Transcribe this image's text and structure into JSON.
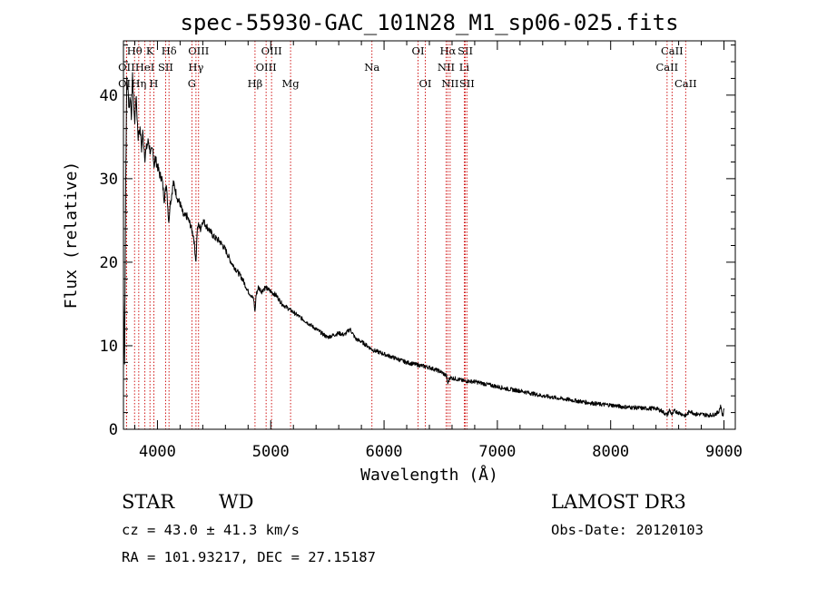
{
  "chart_data": {
    "type": "line",
    "title": "spec-55930-GAC_101N28_M1_sp06-025.fits",
    "xlabel": "Wavelength (Å)",
    "ylabel": "Flux (relative)",
    "xlim": [
      3700,
      9100
    ],
    "ylim": [
      0,
      46.5
    ],
    "xticks": [
      4000,
      5000,
      6000,
      7000,
      8000,
      9000
    ],
    "yticks": [
      0,
      10,
      20,
      30,
      40
    ],
    "grid": false,
    "series": [
      {
        "name": "spectrum",
        "x": [
          3700,
          3710,
          3720,
          3730,
          3740,
          3750,
          3760,
          3770,
          3780,
          3790,
          3800,
          3810,
          3820,
          3830,
          3840,
          3850,
          3860,
          3870,
          3880,
          3890,
          3900,
          3920,
          3940,
          3960,
          3970,
          3980,
          4000,
          4020,
          4040,
          4060,
          4080,
          4100,
          4110,
          4120,
          4140,
          4160,
          4180,
          4200,
          4230,
          4260,
          4290,
          4320,
          4340,
          4350,
          4360,
          4380,
          4400,
          4450,
          4500,
          4550,
          4600,
          4650,
          4700,
          4750,
          4800,
          4830,
          4850,
          4861,
          4870,
          4890,
          4920,
          4950,
          5000,
          5050,
          5100,
          5150,
          5200,
          5300,
          5400,
          5500,
          5600,
          5650,
          5700,
          5750,
          5800,
          5850,
          5900,
          6000,
          6100,
          6200,
          6300,
          6400,
          6500,
          6550,
          6563,
          6580,
          6650,
          6700,
          6800,
          6900,
          7000,
          7100,
          7200,
          7300,
          7400,
          7500,
          7600,
          7700,
          7800,
          7900,
          8000,
          8100,
          8200,
          8300,
          8400,
          8450,
          8498,
          8520,
          8542,
          8560,
          8600,
          8662,
          8700,
          8750,
          8800,
          8850,
          8900,
          8950,
          8970,
          8990,
          9000
        ],
        "y": [
          16,
          8,
          30,
          42,
          40.5,
          38.5,
          40,
          37.5,
          42,
          39.5,
          36.5,
          40,
          37.5,
          35,
          36,
          35.5,
          33.5,
          35.5,
          34,
          32.5,
          33.5,
          34.5,
          33,
          33.5,
          31.5,
          32.5,
          31.5,
          30.5,
          30,
          27.5,
          29.5,
          24.5,
          27,
          27.5,
          29.5,
          28.5,
          27.5,
          27,
          25.5,
          25.5,
          24.5,
          23,
          20,
          23.5,
          24.5,
          24,
          25,
          24,
          23,
          22.5,
          21.5,
          20,
          19,
          18,
          16.5,
          16,
          15.5,
          14,
          16,
          17,
          16.5,
          17,
          16.5,
          16,
          15,
          14.5,
          14,
          13,
          12,
          11,
          11.5,
          11.3,
          12,
          10.8,
          10.5,
          10,
          9.5,
          9,
          8.5,
          8,
          7.7,
          7.4,
          6.9,
          6.4,
          5.5,
          6.2,
          6,
          5.8,
          5.7,
          5.4,
          5.1,
          4.8,
          4.6,
          4.3,
          4,
          3.8,
          3.6,
          3.4,
          3.2,
          3,
          2.9,
          2.7,
          2.6,
          2.5,
          2.5,
          2.2,
          1.7,
          2.3,
          1.7,
          2.2,
          2,
          1.6,
          2.2,
          1.8,
          1.8,
          1.7,
          1.7,
          2,
          2.8,
          1.5,
          2.5
        ]
      }
    ],
    "lines": [
      {
        "label": "Hθ",
        "wl": 3798,
        "row": 0
      },
      {
        "label": "K",
        "wl": 3934,
        "row": 0
      },
      {
        "label": "Hδ",
        "wl": 4102,
        "row": 0
      },
      {
        "label": "OIII",
        "wl": 4363,
        "row": 0
      },
      {
        "label": "OIII",
        "wl": 5007,
        "row": 0
      },
      {
        "label": "OI",
        "wl": 6300,
        "row": 0
      },
      {
        "label": "Hα",
        "wl": 6563,
        "row": 0
      },
      {
        "label": "SII",
        "wl": 6717,
        "row": 0
      },
      {
        "label": "CaII",
        "wl": 8542,
        "row": 0
      },
      {
        "label": "OII",
        "wl": 3727,
        "row": 1
      },
      {
        "label": "HeI",
        "wl": 3889,
        "row": 1
      },
      {
        "label": "SII",
        "wl": 4072,
        "row": 1
      },
      {
        "label": "Hγ",
        "wl": 4340,
        "row": 1
      },
      {
        "label": "OIII",
        "wl": 4959,
        "row": 1
      },
      {
        "label": "Na",
        "wl": 5893,
        "row": 1
      },
      {
        "label": "NII",
        "wl": 6548,
        "row": 1
      },
      {
        "label": "Li",
        "wl": 6708,
        "row": 1
      },
      {
        "label": "CaII",
        "wl": 8498,
        "row": 1
      },
      {
        "label": "OII",
        "wl": 3727,
        "row": 2
      },
      {
        "label": "Hη",
        "wl": 3835,
        "row": 2
      },
      {
        "label": "H",
        "wl": 3968,
        "row": 2
      },
      {
        "label": "G",
        "wl": 4304,
        "row": 2
      },
      {
        "label": "Hβ",
        "wl": 4861,
        "row": 2
      },
      {
        "label": "Mg",
        "wl": 5175,
        "row": 2
      },
      {
        "label": "OI",
        "wl": 6364,
        "row": 2
      },
      {
        "label": "NII",
        "wl": 6583,
        "row": 2
      },
      {
        "label": "SII",
        "wl": 6731,
        "row": 2
      },
      {
        "label": "CaII",
        "wl": 8662,
        "row": 2
      }
    ]
  },
  "info": {
    "obj_class": "STAR",
    "subclass": "WD",
    "survey": "LAMOST DR3",
    "cz": "cz = 43.0 ± 41.3 km/s",
    "obs_date": "Obs-Date: 20120103",
    "coords": "RA = 101.93217, DEC =  27.15187"
  },
  "colors": {
    "spectrum": "#000000",
    "lines": "#cc0000",
    "axes": "#000000"
  }
}
